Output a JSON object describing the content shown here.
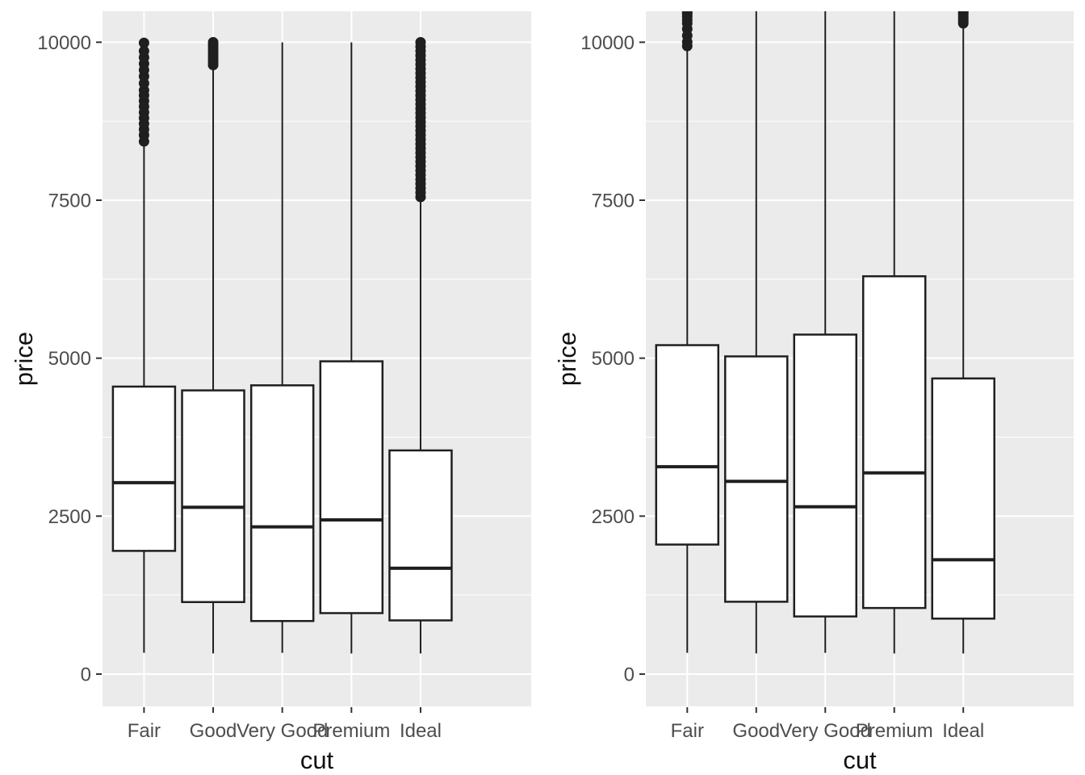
{
  "figure": {
    "kind": "side-by-side-boxplots",
    "background": "#FFFFFF",
    "colors": {
      "panel_background": "#EBEBEB",
      "grid_major": "#FFFFFF",
      "grid_minor": "#FFFFFF",
      "box_fill": "#FFFFFF",
      "box_stroke": "#1F1F1F",
      "median_stroke": "#1F1F1F",
      "outlier_fill": "#1F1F1F",
      "tick_mark": "#333333",
      "tick_label": "#4D4D4D",
      "axis_title": "#111111"
    }
  },
  "chart_data": [
    {
      "type": "boxplot",
      "panel": "left",
      "title": "",
      "xlabel": "cut",
      "ylabel": "price",
      "categories": [
        "Fair",
        "Good",
        "Very Good",
        "Premium",
        "Ideal"
      ],
      "yticks": [
        0,
        2500,
        5000,
        7500,
        10000
      ],
      "ytick_labels": [
        "0",
        "2500",
        "5000",
        "7500",
        "10000"
      ],
      "yminor": [
        1250,
        3750,
        6250,
        8750
      ],
      "ylim": [
        -510,
        10490
      ],
      "grid": "white-on-gray",
      "legend": "none",
      "boxes": [
        {
          "category": "Fair",
          "lower_whisker": 337,
          "q1": 1950,
          "median": 3030,
          "q3": 4550,
          "upper_whisker": 8390,
          "outliers": [
            8430,
            8530,
            8620,
            8710,
            8800,
            8890,
            8980,
            9070,
            9160,
            9240,
            9350,
            9460,
            9560,
            9660,
            9760,
            9860,
            9990
          ]
        },
        {
          "category": "Good",
          "lower_whisker": 327,
          "q1": 1140,
          "median": 2640,
          "q3": 4490,
          "upper_whisker": 9600,
          "outliers": [
            9640,
            9685,
            9730,
            9775,
            9820,
            9865,
            9910,
            9955,
            9999
          ]
        },
        {
          "category": "Very Good",
          "lower_whisker": 336,
          "q1": 840,
          "median": 2330,
          "q3": 4570,
          "upper_whisker": 9997,
          "outliers": []
        },
        {
          "category": "Premium",
          "lower_whisker": 326,
          "q1": 965,
          "median": 2440,
          "q3": 4950,
          "upper_whisker": 9998,
          "outliers": []
        },
        {
          "category": "Ideal",
          "lower_whisker": 326,
          "q1": 850,
          "median": 1675,
          "q3": 3540,
          "upper_whisker": 7520,
          "outliers": [
            7550,
            7620,
            7690,
            7760,
            7830,
            7900,
            7970,
            8040,
            8110,
            8180,
            8250,
            8320,
            8390,
            8460,
            8530,
            8600,
            8670,
            8740,
            8810,
            8880,
            8950,
            9020,
            9090,
            9160,
            9230,
            9300,
            9370,
            9440,
            9510,
            9580,
            9650,
            9720,
            9790,
            9860,
            9930,
            9999
          ]
        }
      ]
    },
    {
      "type": "boxplot",
      "panel": "right",
      "title": "",
      "xlabel": "cut",
      "ylabel": "price",
      "categories": [
        "Fair",
        "Good",
        "Very Good",
        "Premium",
        "Ideal"
      ],
      "yticks": [
        0,
        2500,
        5000,
        7500,
        10000
      ],
      "ytick_labels": [
        "0",
        "2500",
        "5000",
        "7500",
        "10000"
      ],
      "yminor": [
        1250,
        3750,
        6250,
        8750
      ],
      "ylim": [
        -510,
        10490
      ],
      "grid": "white-on-gray",
      "legend": "none",
      "boxes": [
        {
          "category": "Fair",
          "lower_whisker": 337,
          "q1": 2050,
          "median": 3282,
          "q3": 5206,
          "upper_whisker": 9870,
          "outliers": [
            9940,
            10005,
            10105,
            10210,
            10300,
            10350,
            10400,
            10440,
            10470,
            10495
          ]
        },
        {
          "category": "Good",
          "lower_whisker": 327,
          "q1": 1145,
          "median": 3050,
          "q3": 5028,
          "upper_whisker": 10797,
          "outliers": []
        },
        {
          "category": "Very Good",
          "lower_whisker": 336,
          "q1": 912,
          "median": 2648,
          "q3": 5373,
          "upper_whisker": 12063,
          "outliers": []
        },
        {
          "category": "Premium",
          "lower_whisker": 326,
          "q1": 1046,
          "median": 3185,
          "q3": 6296,
          "upper_whisker": 14171,
          "outliers": []
        },
        {
          "category": "Ideal",
          "lower_whisker": 326,
          "q1": 878,
          "median": 1810,
          "q3": 4679,
          "upper_whisker": 10280,
          "outliers": [
            10300,
            10335,
            10370,
            10405,
            10440,
            10470,
            10495
          ]
        }
      ]
    }
  ]
}
